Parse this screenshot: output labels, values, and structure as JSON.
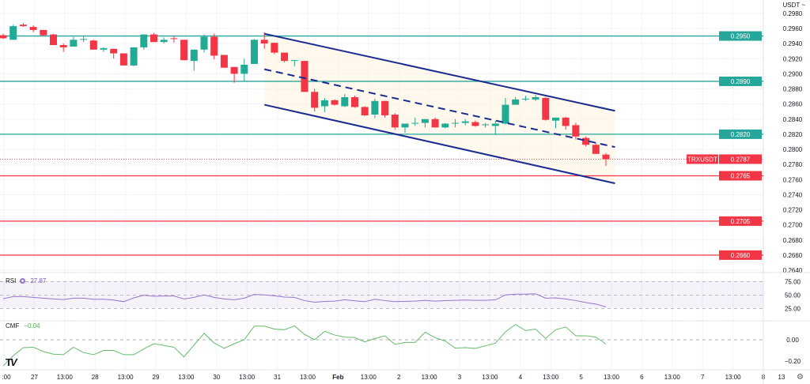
{
  "currency_selector": "USDT ~",
  "symbol": "TRXUSDT",
  "current_price": "0.2787",
  "colors": {
    "up": "#22ab94",
    "down": "#f23645",
    "channel": "#1b2c8f",
    "rsi": "#9575cd",
    "cmf": "#66bb6a",
    "support_resistance_green": "#26a69a",
    "support_resistance_red": "#f23645"
  },
  "price_axis": {
    "ticks": [
      "0.2980",
      "0.2960",
      "0.2940",
      "0.2920",
      "0.2900",
      "0.2880",
      "0.2860",
      "0.2840",
      "0.2820",
      "0.2800",
      "0.2780",
      "0.2760",
      "0.2740",
      "0.2720",
      "0.2700",
      "0.2680",
      "0.2660",
      "0.2640"
    ]
  },
  "levels": [
    {
      "label": "0.2950",
      "value": 0.295,
      "type": "green"
    },
    {
      "label": "0.2890",
      "value": 0.289,
      "type": "green"
    },
    {
      "label": "0.2820",
      "value": 0.282,
      "type": "green"
    },
    {
      "label": "0.2765",
      "value": 0.2765,
      "type": "red"
    },
    {
      "label": "0.2705",
      "value": 0.2705,
      "type": "red"
    },
    {
      "label": "0.2660",
      "value": 0.266,
      "type": "red"
    }
  ],
  "time_axis": [
    ":00",
    "27",
    "13:00",
    "28",
    "13:00",
    "29",
    "13:00",
    "30",
    "13:00",
    "31",
    "13:00",
    "Feb",
    "13:00",
    "2",
    "13:00",
    "3",
    "13:00",
    "4",
    "13:00",
    "5",
    "13:00",
    "6",
    "13:00",
    "7",
    "13:00",
    "8",
    "13"
  ],
  "chart_data": {
    "type": "candlestick",
    "interval": "4h",
    "ohlc": [
      [
        0.2951,
        0.2953,
        0.2946,
        0.2947
      ],
      [
        0.2945,
        0.2965,
        0.2945,
        0.2963
      ],
      [
        0.2965,
        0.2967,
        0.2962,
        0.2963
      ],
      [
        0.2962,
        0.2964,
        0.2955,
        0.2958
      ],
      [
        0.2958,
        0.2958,
        0.295,
        0.2951
      ],
      [
        0.2952,
        0.2953,
        0.2938,
        0.2938
      ],
      [
        0.2938,
        0.294,
        0.2929,
        0.2935
      ],
      [
        0.2936,
        0.2949,
        0.2936,
        0.2945
      ],
      [
        0.2945,
        0.295,
        0.2942,
        0.2946
      ],
      [
        0.2944,
        0.2945,
        0.2932,
        0.2932
      ],
      [
        0.2932,
        0.2935,
        0.2929,
        0.2934
      ],
      [
        0.2933,
        0.2933,
        0.292,
        0.2927
      ],
      [
        0.2927,
        0.2927,
        0.2911,
        0.2911
      ],
      [
        0.2911,
        0.2935,
        0.291,
        0.2935
      ],
      [
        0.2935,
        0.2952,
        0.2932,
        0.2952
      ],
      [
        0.2952,
        0.2954,
        0.2942,
        0.2942
      ],
      [
        0.2942,
        0.2948,
        0.294,
        0.2945
      ],
      [
        0.2947,
        0.295,
        0.2941,
        0.2946
      ],
      [
        0.2945,
        0.2945,
        0.2918,
        0.2918
      ],
      [
        0.2917,
        0.2932,
        0.2904,
        0.2932
      ],
      [
        0.2932,
        0.2952,
        0.2928,
        0.2949
      ],
      [
        0.2949,
        0.2953,
        0.2919,
        0.2924
      ],
      [
        0.2925,
        0.2925,
        0.2908,
        0.2908
      ],
      [
        0.2909,
        0.2909,
        0.2888,
        0.29
      ],
      [
        0.29,
        0.292,
        0.289,
        0.2912
      ],
      [
        0.2913,
        0.2946,
        0.2913,
        0.2945
      ],
      [
        0.2945,
        0.2955,
        0.2933,
        0.294
      ],
      [
        0.2941,
        0.2941,
        0.2926,
        0.2928
      ],
      [
        0.2928,
        0.2928,
        0.2915,
        0.2917
      ],
      [
        0.2917,
        0.2918,
        0.291,
        0.2918
      ],
      [
        0.2917,
        0.2917,
        0.2876,
        0.2876
      ],
      [
        0.2876,
        0.288,
        0.285,
        0.2855
      ],
      [
        0.2857,
        0.2868,
        0.2849,
        0.2865
      ],
      [
        0.2865,
        0.2866,
        0.2858,
        0.2859
      ],
      [
        0.2857,
        0.2873,
        0.2856,
        0.2869
      ],
      [
        0.2869,
        0.2871,
        0.2855,
        0.2856
      ],
      [
        0.2856,
        0.2857,
        0.2844,
        0.2845
      ],
      [
        0.2846,
        0.2867,
        0.2841,
        0.2864
      ],
      [
        0.2864,
        0.2864,
        0.2842,
        0.2845
      ],
      [
        0.2846,
        0.2848,
        0.2826,
        0.2829
      ],
      [
        0.2829,
        0.2834,
        0.2822,
        0.2834
      ],
      [
        0.2834,
        0.2842,
        0.2831,
        0.2835
      ],
      [
        0.2835,
        0.284,
        0.2829,
        0.284
      ],
      [
        0.284,
        0.2842,
        0.2829,
        0.2829
      ],
      [
        0.2829,
        0.2835,
        0.2828,
        0.2834
      ],
      [
        0.2834,
        0.284,
        0.2829,
        0.2835
      ],
      [
        0.2835,
        0.284,
        0.2832,
        0.2837
      ],
      [
        0.2836,
        0.2838,
        0.283,
        0.2831
      ],
      [
        0.2832,
        0.2835,
        0.2829,
        0.2833
      ],
      [
        0.2831,
        0.2838,
        0.2819,
        0.2834
      ],
      [
        0.2834,
        0.2868,
        0.2833,
        0.2859
      ],
      [
        0.2859,
        0.2869,
        0.2859,
        0.2866
      ],
      [
        0.2866,
        0.2871,
        0.2864,
        0.2867
      ],
      [
        0.2866,
        0.2872,
        0.2864,
        0.2869
      ],
      [
        0.2868,
        0.2869,
        0.2838,
        0.2839
      ],
      [
        0.2838,
        0.2842,
        0.2828,
        0.2842
      ],
      [
        0.2842,
        0.2843,
        0.2826,
        0.2831
      ],
      [
        0.2832,
        0.2835,
        0.2813,
        0.2817
      ],
      [
        0.2815,
        0.2817,
        0.2804,
        0.2806
      ],
      [
        0.2806,
        0.2809,
        0.2794,
        0.2794
      ],
      [
        0.2793,
        0.2795,
        0.2778,
        0.2787
      ]
    ],
    "channel": {
      "upper": [
        [
          26,
          0.2953
        ],
        [
          60.9,
          0.2851
        ]
      ],
      "middle": [
        [
          26,
          0.2906
        ],
        [
          60.9,
          0.2803
        ]
      ],
      "lower": [
        [
          26,
          0.2859
        ],
        [
          60.9,
          0.2755
        ]
      ]
    },
    "price_range": [
      0.264,
      0.298
    ]
  },
  "rsi": {
    "label": "RSI",
    "value": "27.87",
    "axis": [
      "75.00",
      "50.00",
      "25.00"
    ],
    "band": [
      25,
      75
    ],
    "values": [
      43,
      47,
      47,
      45.5,
      44,
      42.5,
      41.5,
      44,
      44,
      42,
      42,
      40.5,
      37.5,
      44.6,
      49.5,
      47.5,
      48,
      48,
      42.5,
      45.5,
      50,
      45.5,
      42.5,
      41,
      44,
      51,
      50,
      48.5,
      46,
      45.5,
      39.5,
      36.5,
      38,
      38.5,
      41,
      39,
      37.5,
      42,
      39.5,
      37.5,
      38,
      38.5,
      40,
      38.5,
      39.5,
      40,
      40.5,
      40,
      40,
      41,
      50,
      51.5,
      51.5,
      52,
      44,
      44.5,
      42.5,
      39.5,
      36,
      33,
      27.87
    ]
  },
  "cmf": {
    "label": "CMF",
    "value": "−0.04",
    "axis": [
      "0.00",
      "−0.20"
    ],
    "values": [
      -0.245,
      -0.15,
      -0.074,
      -0.07,
      -0.11,
      -0.135,
      -0.14,
      -0.07,
      -0.12,
      -0.14,
      -0.1,
      -0.1,
      -0.14,
      -0.14,
      -0.086,
      -0.037,
      -0.054,
      -0.07,
      -0.16,
      -0.05,
      0.06,
      -0.03,
      -0.08,
      -0.037,
      0,
      0.128,
      0.128,
      0.1,
      0.094,
      0.13,
      0.05,
      0,
      0.079,
      0.044,
      0.025,
      0.02,
      -0.02,
      0.012,
      0.037,
      -0.044,
      -0.025,
      -0.025,
      0.07,
      0.02,
      -0.012,
      -0.079,
      -0.074,
      -0.081,
      -0.057,
      -0.032,
      0.074,
      0.143,
      0.086,
      0.1,
      0.012,
      0.094,
      0.12,
      0.037,
      0.037,
      0.025,
      -0.04
    ]
  },
  "logo_text": "TV"
}
